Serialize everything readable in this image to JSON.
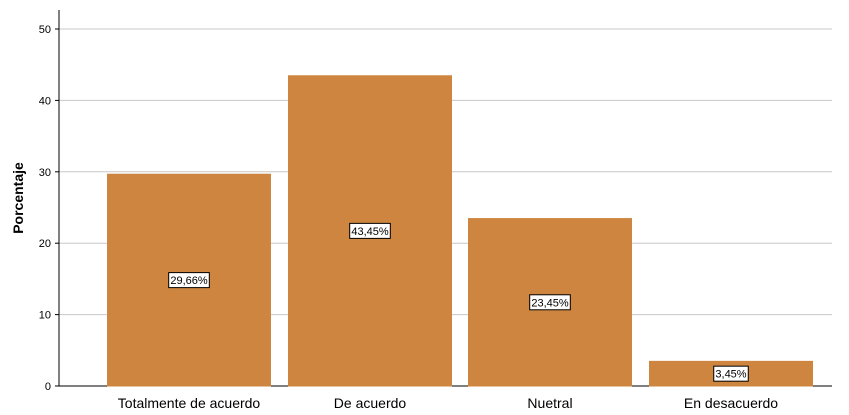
{
  "chart_data": {
    "type": "bar",
    "title": "",
    "xlabel": "",
    "ylabel": "Porcentaje",
    "categories": [
      "Totalmente de acuerdo",
      "De acuerdo",
      "Nuetral",
      "En desacuerdo"
    ],
    "values": [
      29.66,
      43.45,
      23.45,
      3.45
    ],
    "data_labels": [
      "29,66%",
      "43,45%",
      "23,45%",
      "3,45%"
    ],
    "ylim": [
      0,
      50
    ],
    "yticks": [
      0,
      10,
      20,
      30,
      40,
      50
    ],
    "grid": true,
    "legend": "none",
    "colors": {
      "bar": "#CD853F",
      "grid": "#C8C8C8",
      "axis": "#000000"
    }
  }
}
